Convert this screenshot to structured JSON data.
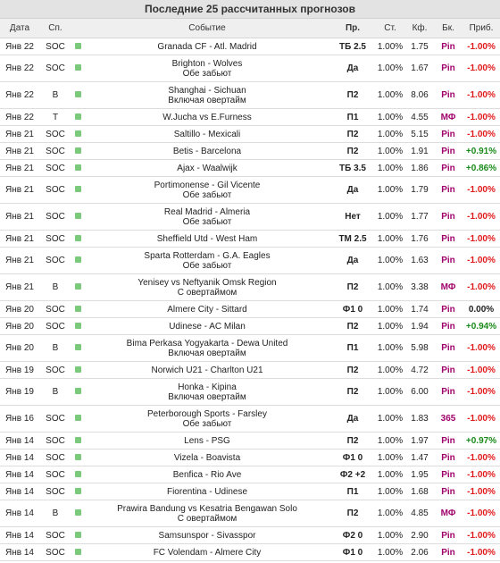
{
  "title": "Последние 25 рассчитанных прогнозов",
  "headers": {
    "date": "Дата",
    "sport": "Сп.",
    "event": "Событие",
    "pred": "Пр.",
    "stake": "Ст.",
    "odds": "Кф.",
    "book": "Бк.",
    "profit": "Приб."
  },
  "colors": {
    "negative": "#e0191b",
    "positive": "#1a8a1a",
    "bookmaker": "#a0006a",
    "status_mark": "#7bc97b"
  },
  "rows": [
    {
      "date": "Янв 22",
      "sport": "SOC",
      "event": "Granada CF - Atl. Madrid",
      "sub": "",
      "pred": "ТБ 2.5",
      "stake": "1.00%",
      "odds": "1.75",
      "book": "Pin",
      "profit": "-1.00%",
      "sign": "neg"
    },
    {
      "date": "Янв 22",
      "sport": "SOC",
      "event": "Brighton - Wolves",
      "sub": "Обе забьют",
      "pred": "Да",
      "stake": "1.00%",
      "odds": "1.67",
      "book": "Pin",
      "profit": "-1.00%",
      "sign": "neg"
    },
    {
      "date": "Янв 22",
      "sport": "B",
      "event": "Shanghai - Sichuan",
      "sub": "Включая овертайм",
      "pred": "П2",
      "stake": "1.00%",
      "odds": "8.06",
      "book": "Pin",
      "profit": "-1.00%",
      "sign": "neg"
    },
    {
      "date": "Янв 22",
      "sport": "T",
      "event": "W.Jucha vs E.Furness",
      "sub": "",
      "pred": "П1",
      "stake": "1.00%",
      "odds": "4.55",
      "book": "МФ",
      "profit": "-1.00%",
      "sign": "neg"
    },
    {
      "date": "Янв 21",
      "sport": "SOC",
      "event": "Saltillo - Mexicali",
      "sub": "",
      "pred": "П2",
      "stake": "1.00%",
      "odds": "5.15",
      "book": "Pin",
      "profit": "-1.00%",
      "sign": "neg"
    },
    {
      "date": "Янв 21",
      "sport": "SOC",
      "event": "Betis - Barcelona",
      "sub": "",
      "pred": "П2",
      "stake": "1.00%",
      "odds": "1.91",
      "book": "Pin",
      "profit": "+0.91%",
      "sign": "pos"
    },
    {
      "date": "Янв 21",
      "sport": "SOC",
      "event": "Ajax - Waalwijk",
      "sub": "",
      "pred": "ТБ 3.5",
      "stake": "1.00%",
      "odds": "1.86",
      "book": "Pin",
      "profit": "+0.86%",
      "sign": "pos"
    },
    {
      "date": "Янв 21",
      "sport": "SOC",
      "event": "Portimonense - Gil Vicente",
      "sub": "Обе забьют",
      "pred": "Да",
      "stake": "1.00%",
      "odds": "1.79",
      "book": "Pin",
      "profit": "-1.00%",
      "sign": "neg"
    },
    {
      "date": "Янв 21",
      "sport": "SOC",
      "event": "Real Madrid - Almeria",
      "sub": "Обе забьют",
      "pred": "Нет",
      "stake": "1.00%",
      "odds": "1.77",
      "book": "Pin",
      "profit": "-1.00%",
      "sign": "neg"
    },
    {
      "date": "Янв 21",
      "sport": "SOC",
      "event": "Sheffield Utd - West Ham",
      "sub": "",
      "pred": "ТМ 2.5",
      "stake": "1.00%",
      "odds": "1.76",
      "book": "Pin",
      "profit": "-1.00%",
      "sign": "neg"
    },
    {
      "date": "Янв 21",
      "sport": "SOC",
      "event": "Sparta Rotterdam - G.A. Eagles",
      "sub": "Обе забьют",
      "pred": "Да",
      "stake": "1.00%",
      "odds": "1.63",
      "book": "Pin",
      "profit": "-1.00%",
      "sign": "neg"
    },
    {
      "date": "Янв 21",
      "sport": "B",
      "event": "Yenisey vs Neftyanik Omsk Region",
      "sub": "С овертаймом",
      "pred": "П2",
      "stake": "1.00%",
      "odds": "3.38",
      "book": "МФ",
      "profit": "-1.00%",
      "sign": "neg"
    },
    {
      "date": "Янв 20",
      "sport": "SOC",
      "event": "Almere City - Sittard",
      "sub": "",
      "pred": "Ф1 0",
      "stake": "1.00%",
      "odds": "1.74",
      "book": "Pin",
      "profit": "0.00%",
      "sign": "zero"
    },
    {
      "date": "Янв 20",
      "sport": "SOC",
      "event": "Udinese - AC Milan",
      "sub": "",
      "pred": "П2",
      "stake": "1.00%",
      "odds": "1.94",
      "book": "Pin",
      "profit": "+0.94%",
      "sign": "pos"
    },
    {
      "date": "Янв 20",
      "sport": "B",
      "event": "Bima Perkasa Yogyakarta - Dewa United",
      "sub": "Включая овертайм",
      "pred": "П1",
      "stake": "1.00%",
      "odds": "5.98",
      "book": "Pin",
      "profit": "-1.00%",
      "sign": "neg"
    },
    {
      "date": "Янв 19",
      "sport": "SOC",
      "event": "Norwich U21 - Charlton U21",
      "sub": "",
      "pred": "П2",
      "stake": "1.00%",
      "odds": "4.72",
      "book": "Pin",
      "profit": "-1.00%",
      "sign": "neg"
    },
    {
      "date": "Янв 19",
      "sport": "B",
      "event": "Honka - Kipina",
      "sub": "Включая овертайм",
      "pred": "П2",
      "stake": "1.00%",
      "odds": "6.00",
      "book": "Pin",
      "profit": "-1.00%",
      "sign": "neg"
    },
    {
      "date": "Янв 16",
      "sport": "SOC",
      "event": "Peterborough Sports - Farsley",
      "sub": "Обе забьют",
      "pred": "Да",
      "stake": "1.00%",
      "odds": "1.83",
      "book": "365",
      "profit": "-1.00%",
      "sign": "neg"
    },
    {
      "date": "Янв 14",
      "sport": "SOC",
      "event": "Lens - PSG",
      "sub": "",
      "pred": "П2",
      "stake": "1.00%",
      "odds": "1.97",
      "book": "Pin",
      "profit": "+0.97%",
      "sign": "pos"
    },
    {
      "date": "Янв 14",
      "sport": "SOC",
      "event": "Vizela - Boavista",
      "sub": "",
      "pred": "Ф1 0",
      "stake": "1.00%",
      "odds": "1.47",
      "book": "Pin",
      "profit": "-1.00%",
      "sign": "neg"
    },
    {
      "date": "Янв 14",
      "sport": "SOC",
      "event": "Benfica - Rio Ave",
      "sub": "",
      "pred": "Ф2 +2",
      "stake": "1.00%",
      "odds": "1.95",
      "book": "Pin",
      "profit": "-1.00%",
      "sign": "neg"
    },
    {
      "date": "Янв 14",
      "sport": "SOC",
      "event": "Fiorentina - Udinese",
      "sub": "",
      "pred": "П1",
      "stake": "1.00%",
      "odds": "1.68",
      "book": "Pin",
      "profit": "-1.00%",
      "sign": "neg"
    },
    {
      "date": "Янв 14",
      "sport": "B",
      "event": "Prawira Bandung vs Kesatria Bengawan Solo",
      "sub": "С овертаймом",
      "pred": "П2",
      "stake": "1.00%",
      "odds": "4.85",
      "book": "МФ",
      "profit": "-1.00%",
      "sign": "neg"
    },
    {
      "date": "Янв 14",
      "sport": "SOC",
      "event": "Samsunspor - Sivasspor",
      "sub": "",
      "pred": "Ф2 0",
      "stake": "1.00%",
      "odds": "2.90",
      "book": "Pin",
      "profit": "-1.00%",
      "sign": "neg"
    },
    {
      "date": "Янв 14",
      "sport": "SOC",
      "event": "FC Volendam - Almere City",
      "sub": "",
      "pred": "Ф1 0",
      "stake": "1.00%",
      "odds": "2.06",
      "book": "Pin",
      "profit": "-1.00%",
      "sign": "neg"
    }
  ]
}
